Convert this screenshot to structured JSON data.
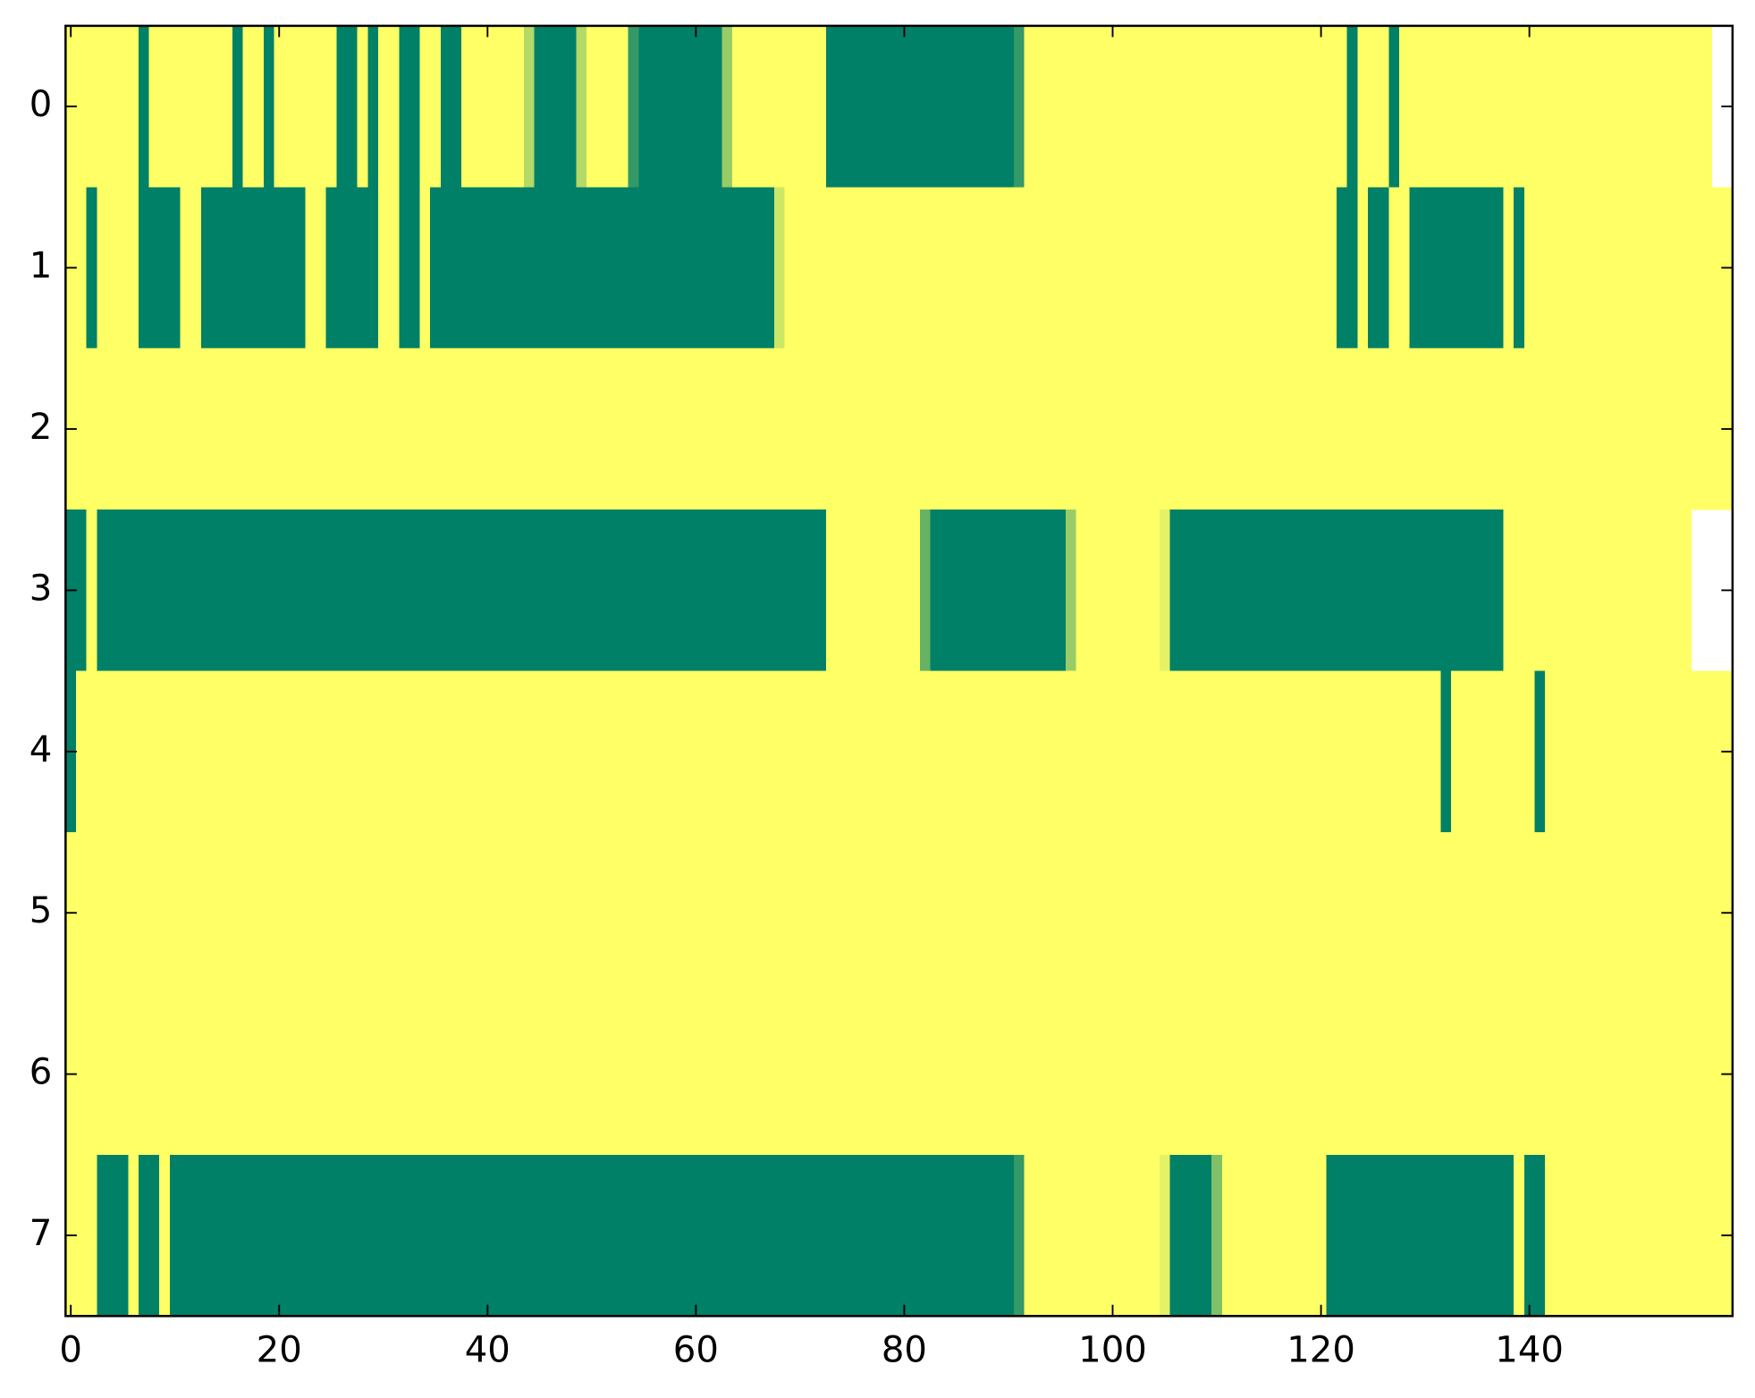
{
  "chart_data": {
    "type": "heatmap",
    "xlim": [
      -0.5,
      159.5
    ],
    "ylim": [
      7.5,
      -0.5
    ],
    "xticks": [
      0,
      20,
      40,
      60,
      80,
      100,
      120,
      140
    ],
    "yticks": [
      0,
      1,
      2,
      3,
      4,
      5,
      6,
      7
    ],
    "clim": [
      0,
      1
    ],
    "color_low": "#008066",
    "color_high": "#ffff66",
    "z": [
      [
        1,
        1,
        1,
        1,
        1,
        1,
        1,
        0,
        1,
        1,
        1,
        1,
        1,
        1,
        1,
        1,
        0,
        1,
        1,
        0,
        1,
        1,
        1,
        1,
        1,
        1,
        0,
        0,
        1,
        0,
        1,
        1,
        0,
        0,
        1,
        1,
        0,
        0,
        1,
        1,
        1,
        1,
        1,
        1,
        0.7,
        0,
        0,
        0,
        0,
        0.7,
        1,
        1,
        1,
        1,
        0.2,
        0,
        0,
        0,
        0,
        0,
        0,
        0,
        0,
        0.6,
        1,
        1,
        1,
        1,
        1,
        1,
        1,
        1,
        1,
        0,
        0,
        0,
        0,
        0,
        0,
        0,
        0,
        0,
        0,
        0,
        0,
        0,
        0,
        0,
        0,
        0,
        0,
        0.2,
        1,
        1,
        1,
        1,
        1,
        1,
        1,
        1,
        1,
        1,
        1,
        1,
        1,
        1,
        1,
        1,
        1,
        1,
        1,
        1,
        1,
        1,
        1,
        1,
        1,
        1,
        1,
        1,
        1,
        1,
        1,
        0,
        1,
        1,
        1,
        0,
        1,
        1,
        1,
        1,
        1,
        1,
        1,
        1,
        1,
        1,
        1,
        1,
        1,
        1,
        1,
        1,
        1,
        1,
        1,
        1,
        1,
        1,
        1,
        1,
        1,
        1,
        1,
        1,
        1,
        1
      ],
      [
        1,
        1,
        0,
        1,
        1,
        1,
        1,
        0,
        0,
        0,
        0,
        1,
        1,
        0,
        0,
        0,
        0,
        0,
        0,
        0,
        0,
        0,
        0,
        1,
        1,
        0,
        0,
        0,
        0,
        0,
        1,
        1,
        0,
        0,
        1,
        0,
        0,
        0,
        0,
        0,
        0,
        0,
        0,
        0,
        0,
        0,
        0,
        0,
        0,
        0,
        0,
        0,
        0,
        0,
        0,
        0,
        0,
        0,
        0,
        0,
        0,
        0,
        0,
        0,
        0,
        0,
        0,
        0,
        0.8,
        1,
        1,
        1,
        1,
        1,
        1,
        1,
        1,
        1,
        1,
        1,
        1,
        1,
        1,
        1,
        1,
        1,
        1,
        1,
        1,
        1,
        1,
        1,
        1,
        1,
        1,
        1,
        1,
        1,
        1,
        1,
        1,
        1,
        1,
        1,
        1,
        1,
        1,
        1,
        1,
        1,
        1,
        1,
        1,
        1,
        1,
        1,
        1,
        1,
        1,
        1,
        1,
        1,
        0,
        0,
        1,
        0,
        0,
        1,
        1,
        0,
        0,
        0,
        0,
        0,
        0,
        0,
        0,
        0,
        1,
        0,
        1,
        1,
        1,
        1,
        1,
        1,
        1,
        1,
        1,
        1,
        1,
        1,
        1,
        1,
        1,
        1,
        1,
        1,
        1,
        1
      ],
      [
        1,
        1,
        1,
        1,
        1,
        1,
        1,
        1,
        1,
        1,
        1,
        1,
        1,
        1,
        1,
        1,
        1,
        1,
        1,
        1,
        1,
        1,
        1,
        1,
        1,
        1,
        1,
        1,
        1,
        1,
        1,
        1,
        1,
        1,
        1,
        1,
        1,
        1,
        1,
        1,
        1,
        1,
        1,
        1,
        1,
        1,
        1,
        1,
        1,
        1,
        1,
        1,
        1,
        1,
        1,
        1,
        1,
        1,
        1,
        1,
        1,
        1,
        1,
        1,
        1,
        1,
        1,
        1,
        1,
        1,
        1,
        1,
        1,
        1,
        1,
        1,
        1,
        1,
        1,
        1,
        1,
        1,
        1,
        1,
        1,
        1,
        1,
        1,
        1,
        1,
        1,
        1,
        1,
        1,
        1,
        1,
        1,
        1,
        1,
        1,
        1,
        1,
        1,
        1,
        1,
        1,
        1,
        1,
        1,
        1,
        1,
        1,
        1,
        1,
        1,
        1,
        1,
        1,
        1,
        1,
        1,
        1,
        1,
        1,
        1,
        1,
        1,
        1,
        1,
        1,
        1,
        1,
        1,
        1,
        1,
        1,
        1,
        1,
        1,
        1,
        1,
        1,
        1,
        1,
        1,
        1,
        1,
        1,
        1,
        1,
        1,
        1,
        1,
        1,
        1,
        1,
        1,
        1,
        1,
        1
      ],
      [
        0,
        0,
        1,
        0,
        0,
        0,
        0,
        0,
        0,
        0,
        0,
        0,
        0,
        0,
        0,
        0,
        0,
        0,
        0,
        0,
        0,
        0,
        0,
        0,
        0,
        0,
        0,
        0,
        0,
        0,
        0,
        0,
        0,
        0,
        0,
        0,
        0,
        0,
        0,
        0,
        0,
        0,
        0,
        0,
        0,
        0,
        0,
        0,
        0,
        0,
        0,
        0,
        0,
        0,
        0,
        0,
        0,
        0,
        0,
        0,
        0,
        0,
        0,
        0,
        0,
        0,
        0,
        0,
        0,
        0,
        0,
        0,
        0,
        1,
        1,
        1,
        1,
        1,
        1,
        1,
        1,
        1,
        0.4,
        0,
        0,
        0,
        0,
        0,
        0,
        0,
        0,
        0,
        0,
        0,
        0,
        0,
        0.6,
        1,
        1,
        1,
        1,
        1,
        1,
        1,
        1,
        0.9,
        0,
        0,
        0,
        0,
        0,
        0,
        0,
        0,
        0,
        0,
        0,
        0,
        0,
        0,
        0,
        0,
        0,
        0,
        0,
        0,
        0,
        0,
        0,
        0,
        0,
        0,
        0,
        0,
        0,
        0,
        0,
        0,
        1,
        1,
        1,
        1,
        1,
        1,
        1,
        1,
        1,
        1,
        1,
        1,
        1,
        1,
        1,
        1,
        1,
        1
      ],
      [
        0,
        1,
        1,
        1,
        1,
        1,
        1,
        1,
        1,
        1,
        1,
        1,
        1,
        1,
        1,
        1,
        1,
        1,
        1,
        1,
        1,
        1,
        1,
        1,
        1,
        1,
        1,
        1,
        1,
        1,
        1,
        1,
        1,
        1,
        1,
        1,
        1,
        1,
        1,
        1,
        1,
        1,
        1,
        1,
        1,
        1,
        1,
        1,
        1,
        1,
        1,
        1,
        1,
        1,
        1,
        1,
        1,
        1,
        1,
        1,
        1,
        1,
        1,
        1,
        1,
        1,
        1,
        1,
        1,
        1,
        1,
        1,
        1,
        1,
        1,
        1,
        1,
        1,
        1,
        1,
        1,
        1,
        1,
        1,
        1,
        1,
        1,
        1,
        1,
        1,
        1,
        1,
        1,
        1,
        1,
        1,
        1,
        1,
        1,
        1,
        1,
        1,
        1,
        1,
        1,
        1,
        1,
        1,
        1,
        1,
        1,
        1,
        1,
        1,
        1,
        1,
        1,
        1,
        1,
        1,
        1,
        1,
        1,
        1,
        1,
        1,
        1,
        1,
        1,
        1,
        1,
        1,
        0,
        1,
        1,
        1,
        1,
        1,
        1,
        1,
        1,
        0,
        1,
        1,
        1,
        1,
        1,
        1,
        1,
        1,
        1,
        1,
        1,
        1,
        1,
        1,
        1,
        1,
        1,
        1
      ],
      [
        1,
        1,
        1,
        1,
        1,
        1,
        1,
        1,
        1,
        1,
        1,
        1,
        1,
        1,
        1,
        1,
        1,
        1,
        1,
        1,
        1,
        1,
        1,
        1,
        1,
        1,
        1,
        1,
        1,
        1,
        1,
        1,
        1,
        1,
        1,
        1,
        1,
        1,
        1,
        1,
        1,
        1,
        1,
        1,
        1,
        1,
        1,
        1,
        1,
        1,
        1,
        1,
        1,
        1,
        1,
        1,
        1,
        1,
        1,
        1,
        1,
        1,
        1,
        1,
        1,
        1,
        1,
        1,
        1,
        1,
        1,
        1,
        1,
        1,
        1,
        1,
        1,
        1,
        1,
        1,
        1,
        1,
        1,
        1,
        1,
        1,
        1,
        1,
        1,
        1,
        1,
        1,
        1,
        1,
        1,
        1,
        1,
        1,
        1,
        1,
        1,
        1,
        1,
        1,
        1,
        1,
        1,
        1,
        1,
        1,
        1,
        1,
        1,
        1,
        1,
        1,
        1,
        1,
        1,
        1,
        1,
        1,
        1,
        1,
        1,
        1,
        1,
        1,
        1,
        1,
        1,
        1,
        1,
        1,
        1,
        1,
        1,
        1,
        1,
        1,
        1,
        1,
        1,
        1,
        1,
        1,
        1,
        1,
        1,
        1,
        1,
        1,
        1,
        1,
        1,
        1,
        1,
        1,
        1,
        1
      ],
      [
        1,
        1,
        1,
        1,
        1,
        1,
        1,
        1,
        1,
        1,
        1,
        1,
        1,
        1,
        1,
        1,
        1,
        1,
        1,
        1,
        1,
        1,
        1,
        1,
        1,
        1,
        1,
        1,
        1,
        1,
        1,
        1,
        1,
        1,
        1,
        1,
        1,
        1,
        1,
        1,
        1,
        1,
        1,
        1,
        1,
        1,
        1,
        1,
        1,
        1,
        1,
        1,
        1,
        1,
        1,
        1,
        1,
        1,
        1,
        1,
        1,
        1,
        1,
        1,
        1,
        1,
        1,
        1,
        1,
        1,
        1,
        1,
        1,
        1,
        1,
        1,
        1,
        1,
        1,
        1,
        1,
        1,
        1,
        1,
        1,
        1,
        1,
        1,
        1,
        1,
        1,
        1,
        1,
        1,
        1,
        1,
        1,
        1,
        1,
        1,
        1,
        1,
        1,
        1,
        1,
        1,
        1,
        1,
        1,
        1,
        1,
        1,
        1,
        1,
        1,
        1,
        1,
        1,
        1,
        1,
        1,
        1,
        1,
        1,
        1,
        1,
        1,
        1,
        1,
        1,
        1,
        1,
        1,
        1,
        1,
        1,
        1,
        1,
        1,
        1,
        1,
        1,
        1,
        1,
        1,
        1,
        1,
        1,
        1,
        1,
        1,
        1,
        1,
        1,
        1,
        1,
        1,
        1,
        1,
        1
      ],
      [
        1,
        1,
        1,
        0,
        0,
        0,
        1,
        0,
        0,
        1,
        0,
        0,
        0,
        0,
        0,
        0,
        0,
        0,
        0,
        0,
        0,
        0,
        0,
        0,
        0,
        0,
        0,
        0,
        0,
        0,
        0,
        0,
        0,
        0,
        0,
        0,
        0,
        0,
        0,
        0,
        0,
        0,
        0,
        0,
        0,
        0,
        0,
        0,
        0,
        0,
        0,
        0,
        0,
        0,
        0,
        0,
        0,
        0,
        0,
        0,
        0,
        0,
        0,
        0,
        0,
        0,
        0,
        0,
        0,
        0,
        0,
        0,
        0,
        0,
        0,
        0,
        0,
        0,
        0,
        0,
        0,
        0,
        0,
        0,
        0,
        0,
        0,
        0,
        0,
        0,
        0,
        0.2,
        1,
        1,
        1,
        1,
        1,
        1,
        1,
        1,
        1,
        1,
        1,
        1,
        1,
        0.9,
        0,
        0,
        0,
        0,
        0.5,
        1,
        1,
        1,
        1,
        1,
        1,
        1,
        1,
        1,
        1,
        0,
        0,
        0,
        0,
        0,
        0,
        0,
        0,
        0,
        0,
        0,
        0,
        0,
        0,
        0,
        0,
        0,
        0,
        1,
        0,
        0,
        1,
        1,
        1,
        1,
        1,
        1,
        1,
        1,
        1,
        1,
        1,
        1,
        1,
        1,
        1,
        1,
        1,
        1
      ]
    ]
  }
}
